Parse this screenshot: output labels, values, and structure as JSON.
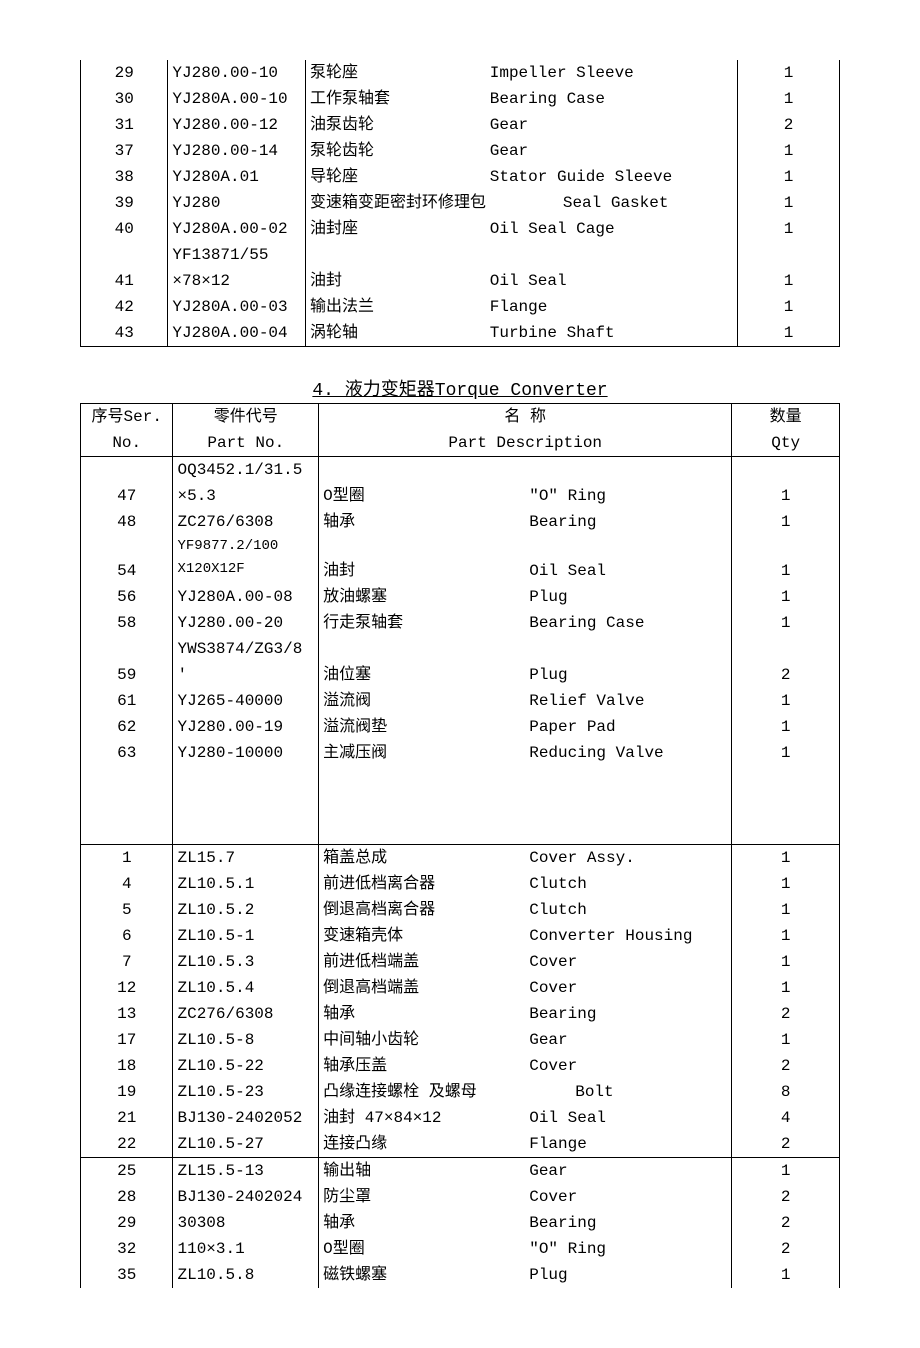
{
  "table1": {
    "rows": [
      {
        "ser": "29",
        "partno": "YJ280.00-10",
        "desc_cn": "泵轮座",
        "desc_en": "Impeller Sleeve",
        "qty": "1"
      },
      {
        "ser": "30",
        "partno": "YJ280A.00-10",
        "desc_cn": "工作泵轴套",
        "desc_en": "Bearing Case",
        "qty": "1"
      },
      {
        "ser": "31",
        "partno": "YJ280.00-12",
        "desc_cn": "油泵齿轮",
        "desc_en": "Gear",
        "qty": "2"
      },
      {
        "ser": "37",
        "partno": "YJ280.00-14",
        "desc_cn": "泵轮齿轮",
        "desc_en": "Gear",
        "qty": "1"
      },
      {
        "ser": "38",
        "partno": "YJ280A.01",
        "desc_cn": "导轮座",
        "desc_en": "Stator Guide Sleeve",
        "qty": "1"
      },
      {
        "ser": "39",
        "partno": "YJ280",
        "desc_cn": "变速箱变距密封环修理包",
        "desc_en": "Seal Gasket",
        "qty": "1",
        "merged_desc": true
      },
      {
        "ser": "40",
        "partno": "YJ280A.00-02",
        "desc_cn": "油封座",
        "desc_en": "Oil Seal Cage",
        "qty": "1"
      },
      {
        "ser": "",
        "partno": "YF13871/55",
        "desc_cn": "",
        "desc_en": "",
        "qty": ""
      },
      {
        "ser": "41",
        "partno": "×78×12",
        "desc_cn": "油封",
        "desc_en": "Oil Seal",
        "qty": "1"
      },
      {
        "ser": "42",
        "partno": "YJ280A.00-03",
        "desc_cn": "输出法兰",
        "desc_en": "Flange",
        "qty": "1"
      },
      {
        "ser": "43",
        "partno": "YJ280A.00-04",
        "desc_cn": "涡轮轴",
        "desc_en": "Turbine Shaft",
        "qty": "1"
      }
    ]
  },
  "section2": {
    "title": "4. 液力变矩器Torque Converter",
    "header": {
      "ser1": "序号Ser.",
      "ser2": "No.",
      "partno1": "零件代号",
      "partno2": "Part No.",
      "desc1": "名        称",
      "desc2": "Part Description",
      "qty1": "数量",
      "qty2": "Qty"
    },
    "group1": [
      {
        "ser": "",
        "partno": "OQ3452.1/31.5",
        "desc_cn": "",
        "desc_en": "",
        "qty": ""
      },
      {
        "ser": "47",
        "partno": "×5.3",
        "desc_cn": "O型圈",
        "desc_en": "\"O\" Ring",
        "qty": "1"
      },
      {
        "ser": "48",
        "partno": "ZC276/6308",
        "desc_cn": "轴承",
        "desc_en": "Bearing",
        "qty": "1"
      },
      {
        "ser": "",
        "partno": "YF9877.2/100",
        "desc_cn": "",
        "desc_en": "",
        "qty": "",
        "small": true
      },
      {
        "ser": "54",
        "partno": "X120X12F",
        "desc_cn": "油封",
        "desc_en": "Oil Seal",
        "qty": "1",
        "small": true
      },
      {
        "ser": "56",
        "partno": "YJ280A.00-08",
        "desc_cn": "放油螺塞",
        "desc_en": "Plug",
        "qty": "1"
      },
      {
        "ser": "58",
        "partno": "YJ280.00-20",
        "desc_cn": "行走泵轴套",
        "desc_en": "Bearing Case",
        "qty": "1"
      },
      {
        "ser": "",
        "partno": "YWS3874/ZG3/8",
        "desc_cn": "",
        "desc_en": "",
        "qty": ""
      },
      {
        "ser": "59",
        "partno": "'",
        "desc_cn": "油位塞",
        "desc_en": "Plug",
        "qty": "2"
      },
      {
        "ser": "61",
        "partno": "YJ265-40000",
        "desc_cn": "溢流阀",
        "desc_en": "Relief Valve",
        "qty": "1"
      },
      {
        "ser": "62",
        "partno": "YJ280.00-19",
        "desc_cn": "溢流阀垫",
        "desc_en": "Paper Pad",
        "qty": "1"
      },
      {
        "ser": "63",
        "partno": "YJ280-10000",
        "desc_cn": "主减压阀",
        "desc_en": "Reducing Valve",
        "qty": "1"
      }
    ],
    "group2": [
      {
        "ser": "1",
        "partno": "ZL15.7",
        "desc_cn": "箱盖总成",
        "desc_en": "Cover Assy.",
        "qty": "1"
      },
      {
        "ser": "4",
        "partno": "ZL10.5.1",
        "desc_cn": "前进低档离合器",
        "desc_en": "Clutch",
        "qty": "1"
      },
      {
        "ser": "5",
        "partno": "ZL10.5.2",
        "desc_cn": "倒退高档离合器",
        "desc_en": "Clutch",
        "qty": "1"
      },
      {
        "ser": "6",
        "partno": "ZL10.5-1",
        "desc_cn": "变速箱壳体",
        "desc_en": "Converter Housing",
        "qty": "1"
      },
      {
        "ser": "7",
        "partno": "ZL10.5.3",
        "desc_cn": "前进低档端盖",
        "desc_en": "Cover",
        "qty": "1"
      },
      {
        "ser": "12",
        "partno": "ZL10.5.4",
        "desc_cn": "倒退高档端盖",
        "desc_en": "Cover",
        "qty": "1"
      },
      {
        "ser": "13",
        "partno": "ZC276/6308",
        "desc_cn": "轴承",
        "desc_en": "Bearing",
        "qty": "2"
      },
      {
        "ser": "17",
        "partno": "ZL10.5-8",
        "desc_cn": "中间轴小齿轮",
        "desc_en": "Gear",
        "qty": "1"
      },
      {
        "ser": "18",
        "partno": "ZL10.5-22",
        "desc_cn": "轴承压盖",
        "desc_en": "Cover",
        "qty": "2"
      },
      {
        "ser": "19",
        "partno": "ZL10.5-23",
        "desc_cn": "凸缘连接螺栓 及螺母",
        "desc_en": "Bolt",
        "qty": "8",
        "indent_en": true
      },
      {
        "ser": "21",
        "partno": "BJ130-2402052",
        "desc_cn": "油封 47×84×12",
        "desc_en": "Oil Seal",
        "qty": "4"
      },
      {
        "ser": "22",
        "partno": "ZL10.5-27",
        "desc_cn": "连接凸缘",
        "desc_en": "Flange",
        "qty": "2"
      }
    ],
    "group3": [
      {
        "ser": "25",
        "partno": "ZL15.5-13",
        "desc_cn": "输出轴",
        "desc_en": "Gear",
        "qty": "1"
      },
      {
        "ser": "28",
        "partno": "BJ130-2402024",
        "desc_cn": "防尘罩",
        "desc_en": "Cover",
        "qty": "2"
      },
      {
        "ser": "29",
        "partno": "30308",
        "desc_cn": "轴承",
        "desc_en": "Bearing",
        "qty": "2"
      },
      {
        "ser": "32",
        "partno": "110×3.1",
        "desc_cn": "O型圈",
        "desc_en": "\"O\" Ring",
        "qty": "2"
      },
      {
        "ser": "35",
        "partno": "ZL10.5.8",
        "desc_cn": "磁铁螺塞",
        "desc_en": "Plug",
        "qty": "1"
      }
    ]
  }
}
